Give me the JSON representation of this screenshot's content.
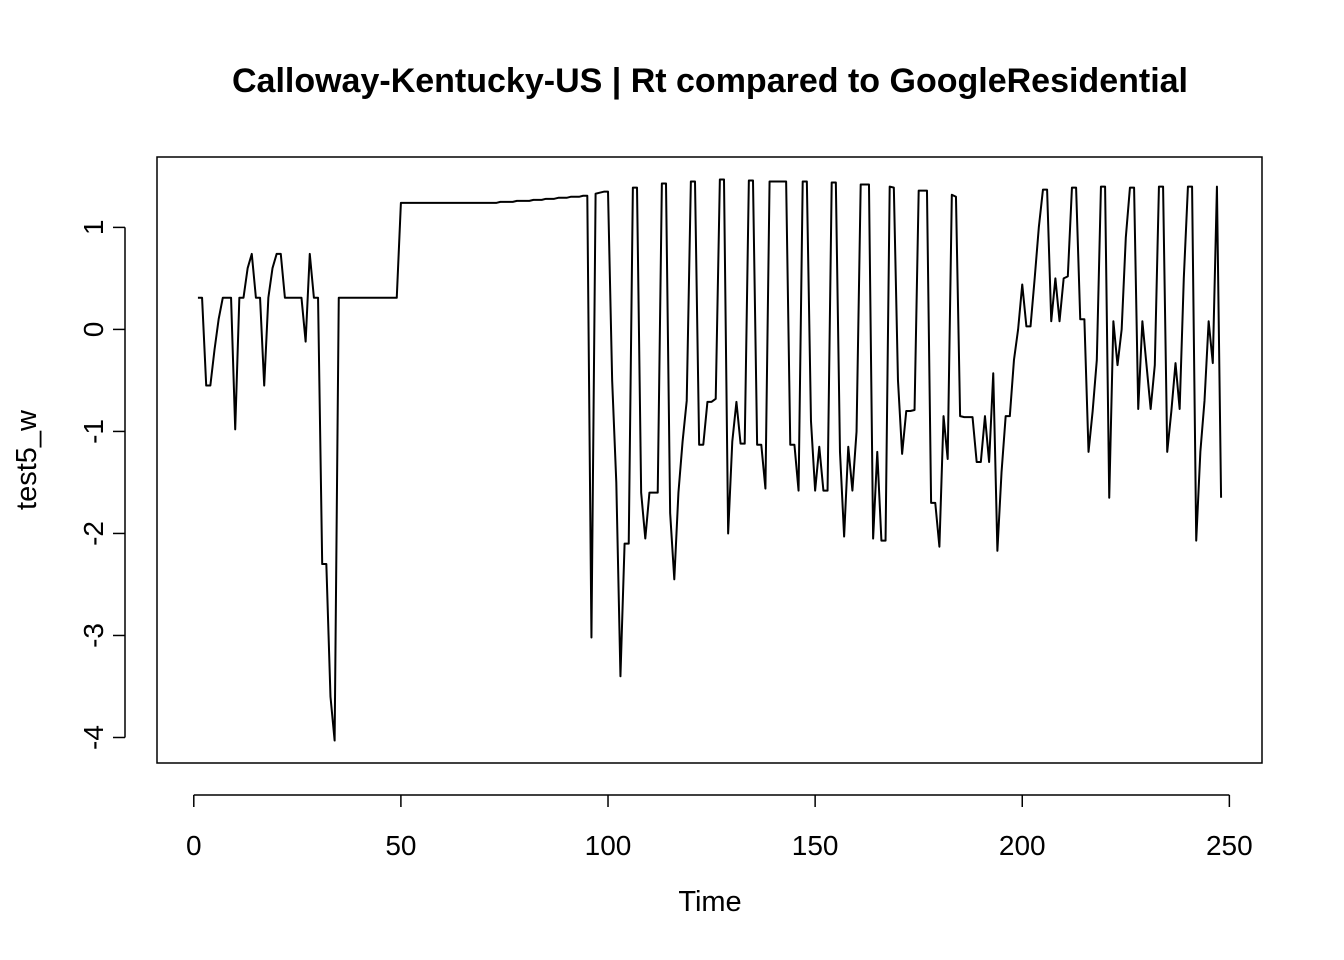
{
  "chart_data": {
    "type": "line",
    "title": "Calloway-Kentucky-US | Rt compared to GoogleResidential",
    "x_label": "Time",
    "y_label": "test5_w",
    "xlim": [
      -8.88,
      257.88
    ],
    "ylim": [
      -4.25,
      1.69
    ],
    "xticks": [
      0,
      50,
      100,
      150,
      200,
      250
    ],
    "yticks": [
      -4,
      -3,
      -2,
      -1,
      0,
      1
    ],
    "series": [
      {
        "name": "test5_w",
        "color": "#000000",
        "x": [
          1,
          2,
          3,
          4,
          5,
          6,
          7,
          8,
          9,
          10,
          11,
          12,
          13,
          14,
          15,
          16,
          17,
          18,
          19,
          20,
          21,
          22,
          23,
          24,
          25,
          26,
          27,
          28,
          29,
          30,
          31,
          32,
          33,
          34,
          35,
          36,
          37,
          38,
          39,
          40,
          41,
          42,
          43,
          44,
          45,
          46,
          47,
          48,
          49,
          50,
          51,
          52,
          53,
          54,
          55,
          56,
          57,
          58,
          59,
          60,
          61,
          62,
          63,
          64,
          65,
          66,
          67,
          68,
          69,
          70,
          71,
          72,
          73,
          74,
          75,
          76,
          77,
          78,
          79,
          80,
          81,
          82,
          83,
          84,
          85,
          86,
          87,
          88,
          89,
          90,
          91,
          92,
          93,
          94,
          95,
          96,
          97,
          98,
          99,
          100,
          101,
          102,
          103,
          104,
          105,
          106,
          107,
          108,
          109,
          110,
          111,
          112,
          113,
          114,
          115,
          116,
          117,
          118,
          119,
          120,
          121,
          122,
          123,
          124,
          125,
          126,
          127,
          128,
          129,
          130,
          131,
          132,
          133,
          134,
          135,
          136,
          137,
          138,
          139,
          140,
          141,
          142,
          143,
          144,
          145,
          146,
          147,
          148,
          149,
          150,
          151,
          152,
          153,
          154,
          155,
          156,
          157,
          158,
          159,
          160,
          161,
          162,
          163,
          164,
          165,
          166,
          167,
          168,
          169,
          170,
          171,
          172,
          173,
          174,
          175,
          176,
          177,
          178,
          179,
          180,
          181,
          182,
          183,
          184,
          185,
          186,
          187,
          188,
          189,
          190,
          191,
          192,
          193,
          194,
          195,
          196,
          197,
          198,
          199,
          200,
          201,
          202,
          203,
          204,
          205,
          206,
          207,
          208,
          209,
          210,
          211,
          212,
          213,
          214,
          215,
          216,
          217,
          218,
          219,
          220,
          221,
          222,
          223,
          224,
          225,
          226,
          227,
          228,
          229,
          230,
          231,
          232,
          233,
          234,
          235,
          236,
          237,
          238,
          239,
          240,
          241,
          242,
          243,
          244,
          245,
          246,
          247,
          248
        ],
        "values": [
          0.31,
          0.31,
          -0.55,
          -0.55,
          -0.2,
          0.1,
          0.31,
          0.31,
          0.31,
          -0.98,
          0.31,
          0.31,
          0.6,
          0.74,
          0.31,
          0.31,
          -0.55,
          0.31,
          0.6,
          0.74,
          0.74,
          0.31,
          0.31,
          0.31,
          0.31,
          0.31,
          -0.12,
          0.74,
          0.31,
          0.31,
          -2.3,
          -2.3,
          -3.6,
          -4.03,
          0.31,
          0.31,
          0.31,
          0.31,
          0.31,
          0.31,
          0.31,
          0.31,
          0.31,
          0.31,
          0.31,
          0.31,
          0.31,
          0.31,
          0.31,
          1.24,
          1.24,
          1.24,
          1.24,
          1.24,
          1.24,
          1.24,
          1.24,
          1.24,
          1.24,
          1.24,
          1.24,
          1.24,
          1.24,
          1.24,
          1.24,
          1.24,
          1.24,
          1.24,
          1.24,
          1.24,
          1.24,
          1.24,
          1.24,
          1.25,
          1.25,
          1.25,
          1.25,
          1.26,
          1.26,
          1.26,
          1.26,
          1.27,
          1.27,
          1.27,
          1.28,
          1.28,
          1.28,
          1.29,
          1.29,
          1.29,
          1.3,
          1.3,
          1.3,
          1.31,
          1.31,
          -3.02,
          1.33,
          1.34,
          1.35,
          1.35,
          -0.5,
          -1.5,
          -3.4,
          -2.1,
          -2.1,
          1.39,
          1.39,
          -1.6,
          -2.05,
          -1.6,
          -1.6,
          -1.6,
          1.43,
          1.43,
          -1.8,
          -2.45,
          -1.6,
          -1.1,
          -0.7,
          1.45,
          1.45,
          -1.13,
          -1.13,
          -0.71,
          -0.71,
          -0.68,
          1.47,
          1.47,
          -2.0,
          -1.1,
          -0.71,
          -1.12,
          -1.12,
          1.46,
          1.46,
          -1.13,
          -1.13,
          -1.56,
          1.45,
          1.45,
          1.45,
          1.45,
          1.45,
          -1.13,
          -1.13,
          -1.58,
          1.45,
          1.45,
          -0.9,
          -1.58,
          -1.15,
          -1.58,
          -1.58,
          1.44,
          1.44,
          -1.2,
          -2.03,
          -1.15,
          -1.58,
          -1.0,
          1.42,
          1.42,
          1.42,
          -2.05,
          -1.2,
          -2.07,
          -2.07,
          1.4,
          1.39,
          -0.5,
          -1.22,
          -0.8,
          -0.8,
          -0.79,
          1.36,
          1.36,
          1.36,
          -1.7,
          -1.7,
          -2.13,
          -0.85,
          -1.27,
          1.32,
          1.3,
          -0.85,
          -0.86,
          -0.86,
          -0.86,
          -1.3,
          -1.3,
          -0.85,
          -1.3,
          -0.43,
          -2.17,
          -1.4,
          -0.85,
          -0.85,
          -0.3,
          0.0,
          0.44,
          0.03,
          0.03,
          0.5,
          1.0,
          1.37,
          1.37,
          0.08,
          0.5,
          0.08,
          0.5,
          0.52,
          1.39,
          1.39,
          0.1,
          0.1,
          -1.2,
          -0.8,
          -0.3,
          1.4,
          1.4,
          -1.65,
          0.08,
          -0.35,
          0.0,
          0.9,
          1.39,
          1.39,
          -0.78,
          0.08,
          -0.35,
          -0.78,
          -0.35,
          1.4,
          1.4,
          -1.2,
          -0.8,
          -0.33,
          -0.78,
          0.5,
          1.4,
          1.4,
          -2.07,
          -1.2,
          -0.7,
          0.08,
          -0.33,
          1.4,
          -1.65
        ]
      }
    ]
  }
}
